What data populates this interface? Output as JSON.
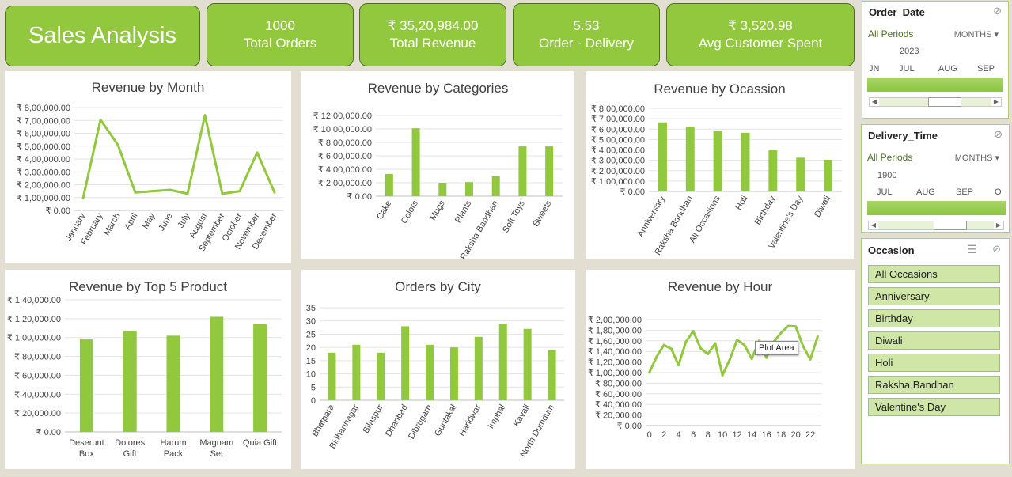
{
  "kpis": {
    "title": "Sales Analysis",
    "total_orders_value": "1000",
    "total_orders_label": "Total Orders",
    "total_revenue_value": "₹ 35,20,984.00",
    "total_revenue_label": "Total Revenue",
    "order_delivery_value": "5.53",
    "order_delivery_label": "Order - Delivery",
    "avg_spent_value": "₹ 3,520.98",
    "avg_spent_label": "Avg Customer Spent"
  },
  "colors": {
    "accent": "#92c83e",
    "accent_dark": "#4d7024",
    "background": "#e2dfd2"
  },
  "chart_data": [
    {
      "type": "line",
      "title": "Revenue by Month",
      "categories": [
        "January",
        "February",
        "March",
        "April",
        "May",
        "June",
        "July",
        "August",
        "September",
        "October",
        "November",
        "December"
      ],
      "values": [
        95000,
        705000,
        510000,
        140000,
        150000,
        160000,
        130000,
        740000,
        130000,
        150000,
        450000,
        140000
      ],
      "ylim": [
        0,
        800000
      ],
      "yticks": [
        "₹ 8,00,000.00",
        "₹ 7,00,000.00",
        "₹ 6,00,000.00",
        "₹ 5,00,000.00",
        "₹ 4,00,000.00",
        "₹ 3,00,000.00",
        "₹ 2,00,000.00",
        "₹ 1,00,000.00",
        "₹ 0.00"
      ]
    },
    {
      "type": "bar",
      "title": "Revenue by Categories",
      "categories": [
        "Cake",
        "Colors",
        "Mugs",
        "Plants",
        "Raksha Bandhan",
        "Soft Toys",
        "Sweets"
      ],
      "values": [
        330000,
        1010000,
        200000,
        210000,
        295000,
        740000,
        740000
      ],
      "ylim": [
        0,
        1200000
      ],
      "yticks": [
        "₹ 12,00,000.00",
        "₹ 10,00,000.00",
        "₹ 8,00,000.00",
        "₹ 6,00,000.00",
        "₹ 4,00,000.00",
        "₹ 2,00,000.00",
        "₹ 0.00"
      ]
    },
    {
      "type": "bar",
      "title": "Revenue by Ocassion",
      "categories": [
        "Anniversary",
        "Raksha Bandhan",
        "All Occasions",
        "Holi",
        "Birthday",
        "Valentine's Day",
        "Diwali"
      ],
      "values": [
        665000,
        625000,
        580000,
        565000,
        400000,
        325000,
        305000
      ],
      "ylim": [
        0,
        800000
      ],
      "yticks": [
        "₹ 8,00,000.00",
        "₹ 7,00,000.00",
        "₹ 6,00,000.00",
        "₹ 5,00,000.00",
        "₹ 4,00,000.00",
        "₹ 3,00,000.00",
        "₹ 2,00,000.00",
        "₹ 1,00,000.00",
        "₹ 0.00"
      ]
    },
    {
      "type": "bar",
      "title": "Revenue by Top 5 Product",
      "categories": [
        "Deserunt Box",
        "Dolores Gift",
        "Harum Pack",
        "Magnam Set",
        "Quia Gift"
      ],
      "values": [
        98000,
        107000,
        102000,
        122000,
        114000
      ],
      "ylim": [
        0,
        140000
      ],
      "yticks": [
        "₹ 1,40,000.00",
        "₹ 1,20,000.00",
        "₹ 1,00,000.00",
        "₹ 80,000.00",
        "₹ 60,000.00",
        "₹ 40,000.00",
        "₹ 20,000.00",
        "₹ 0.00"
      ]
    },
    {
      "type": "bar",
      "title": "Orders by City",
      "categories": [
        "Bhatpara",
        "Bidhannagar",
        "Bilaspur",
        "Dhanbad",
        "Dibrugarh",
        "Guntakal",
        "Haridwar",
        "Imphal",
        "Kavali",
        "North Dumdum"
      ],
      "values": [
        18,
        21,
        18,
        28,
        21,
        20,
        24,
        29,
        27,
        19
      ],
      "ylim": [
        0,
        35
      ],
      "yticks": [
        "35",
        "30",
        "25",
        "20",
        "15",
        "10",
        "5",
        "0"
      ]
    },
    {
      "type": "line",
      "title": "Revenue by Hour",
      "x": [
        0,
        1,
        2,
        3,
        4,
        5,
        6,
        7,
        8,
        9,
        10,
        11,
        12,
        13,
        14,
        15,
        16,
        17,
        18,
        19,
        20,
        21,
        22,
        23
      ],
      "values": [
        100000,
        130000,
        152000,
        145000,
        114000,
        158000,
        178000,
        146000,
        135000,
        155000,
        95000,
        125000,
        162000,
        152000,
        126000,
        160000,
        128000,
        158000,
        175000,
        188000,
        187000,
        150000,
        125000,
        168000
      ],
      "ylim": [
        0,
        200000
      ],
      "yticks": [
        "₹ 2,00,000.00",
        "₹ 1,80,000.00",
        "₹ 1,60,000.00",
        "₹ 1,40,000.00",
        "₹ 1,20,000.00",
        "₹ 1,00,000.00",
        "₹ 80,000.00",
        "₹ 60,000.00",
        "₹ 40,000.00",
        "₹ 20,000.00",
        "₹ 0.00"
      ],
      "xticks": [
        "0",
        "2",
        "4",
        "6",
        "8",
        "10",
        "12",
        "14",
        "16",
        "18",
        "20",
        "22"
      ],
      "tooltip": "Plot Area"
    }
  ],
  "slicers": {
    "order_date": {
      "title": "Order_Date",
      "all_periods": "All Periods",
      "unit": "MONTHS ▾",
      "year": "2023",
      "months": [
        "JN",
        "JUL",
        "AUG",
        "SEP"
      ]
    },
    "delivery_time": {
      "title": "Delivery_Time",
      "all_periods": "All Periods",
      "unit": "MONTHS ▾",
      "year": "1900",
      "months": [
        "JUL",
        "AUG",
        "SEP",
        "O"
      ]
    },
    "occasion": {
      "title": "Occasion",
      "items": [
        "All Occasions",
        "Anniversary",
        "Birthday",
        "Diwali",
        "Holi",
        "Raksha Bandhan",
        "Valentine's Day"
      ]
    }
  }
}
